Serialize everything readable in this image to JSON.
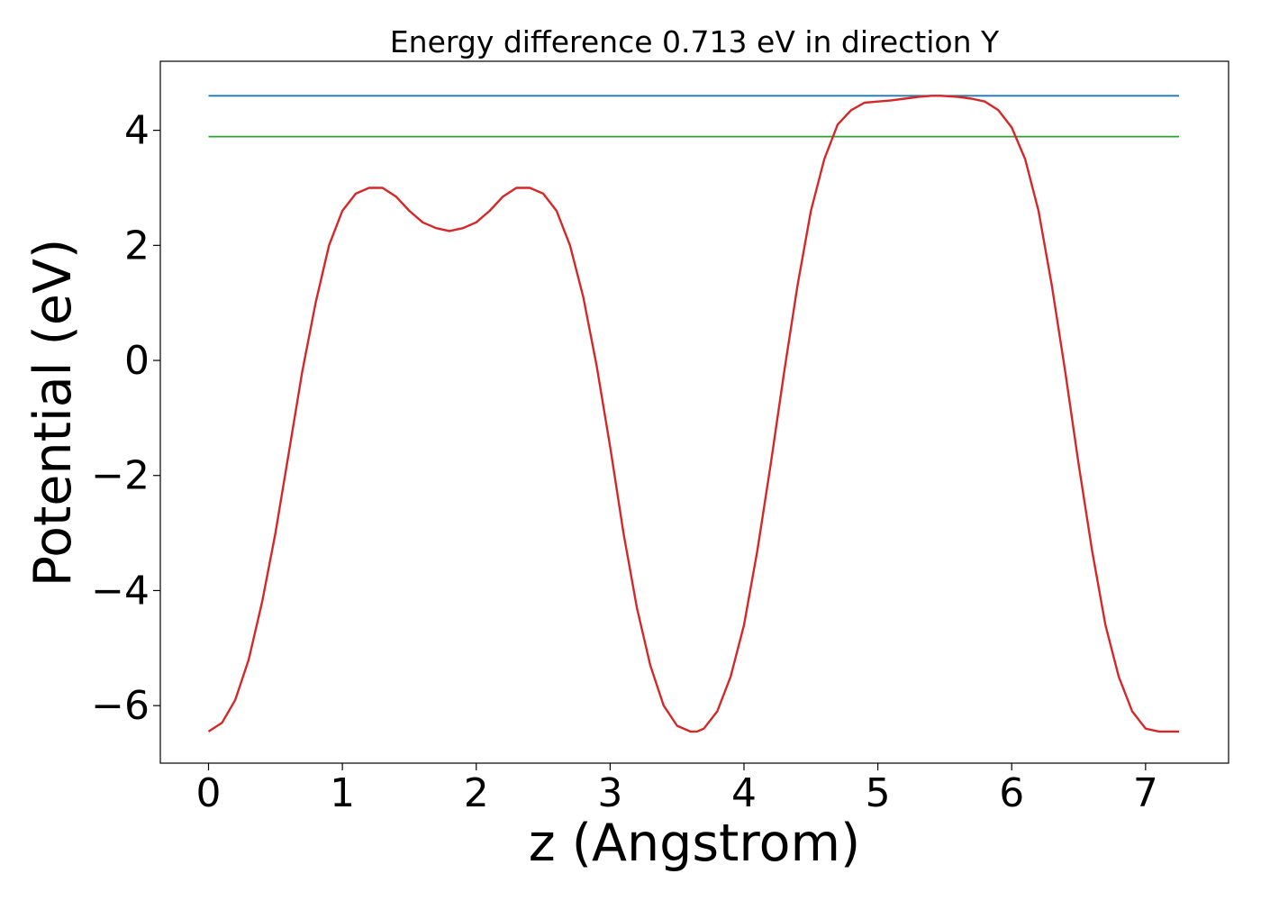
{
  "chart_data": {
    "type": "line",
    "title": "Energy difference 0.713 eV in direction Y",
    "xlabel": "z (Angstrom)",
    "ylabel": "Potential (eV)",
    "xlim": [
      -0.36,
      7.62
    ],
    "ylim": [
      -7.0,
      5.2
    ],
    "xticks": [
      0,
      1,
      2,
      3,
      4,
      5,
      6,
      7
    ],
    "xtick_labels": [
      "0",
      "1",
      "2",
      "3",
      "4",
      "5",
      "6",
      "7"
    ],
    "yticks": [
      -6,
      -4,
      -2,
      0,
      2,
      4
    ],
    "ytick_labels": [
      "−6",
      "−4",
      "−2",
      "0",
      "2",
      "4"
    ],
    "grid": false,
    "series": [
      {
        "color": "#1f77b4",
        "x": [
          0,
          7.25
        ],
        "y": [
          4.6,
          4.6
        ]
      },
      {
        "color": "#2ca02c",
        "x": [
          0,
          7.25
        ],
        "y": [
          3.89,
          3.89
        ]
      },
      {
        "color": "#d62728",
        "x": [
          0,
          0.1,
          0.2,
          0.3,
          0.4,
          0.5,
          0.6,
          0.7,
          0.8,
          0.9,
          1.0,
          1.1,
          1.2,
          1.3,
          1.4,
          1.5,
          1.6,
          1.7,
          1.8,
          1.9,
          2.0,
          2.1,
          2.2,
          2.3,
          2.4,
          2.5,
          2.6,
          2.7,
          2.8,
          2.9,
          3.0,
          3.1,
          3.2,
          3.3,
          3.4,
          3.5,
          3.6,
          3.65,
          3.7,
          3.8,
          3.9,
          4.0,
          4.1,
          4.2,
          4.3,
          4.4,
          4.5,
          4.6,
          4.7,
          4.8,
          4.9,
          5.0,
          5.1,
          5.2,
          5.3,
          5.4,
          5.47,
          5.6,
          5.7,
          5.8,
          5.9,
          6.0,
          6.1,
          6.2,
          6.3,
          6.4,
          6.5,
          6.6,
          6.7,
          6.8,
          6.9,
          7.0,
          7.1,
          7.2,
          7.25
        ],
        "y": [
          -6.45,
          -6.3,
          -5.9,
          -5.2,
          -4.2,
          -3.0,
          -1.6,
          -0.2,
          1.0,
          2.0,
          2.6,
          2.9,
          3.0,
          3.0,
          2.85,
          2.6,
          2.4,
          2.3,
          2.25,
          2.3,
          2.4,
          2.6,
          2.85,
          3.0,
          3.0,
          2.9,
          2.6,
          2.0,
          1.1,
          -0.1,
          -1.5,
          -3.0,
          -4.3,
          -5.3,
          -6.0,
          -6.35,
          -6.45,
          -6.45,
          -6.4,
          -6.1,
          -5.5,
          -4.6,
          -3.3,
          -1.8,
          -0.2,
          1.3,
          2.6,
          3.5,
          4.1,
          4.35,
          4.48,
          4.5,
          4.52,
          4.55,
          4.58,
          4.6,
          4.6,
          4.58,
          4.55,
          4.5,
          4.35,
          4.05,
          3.5,
          2.6,
          1.3,
          -0.2,
          -1.8,
          -3.3,
          -4.6,
          -5.5,
          -6.1,
          -6.4,
          -6.45,
          -6.45,
          -6.45
        ]
      }
    ]
  }
}
